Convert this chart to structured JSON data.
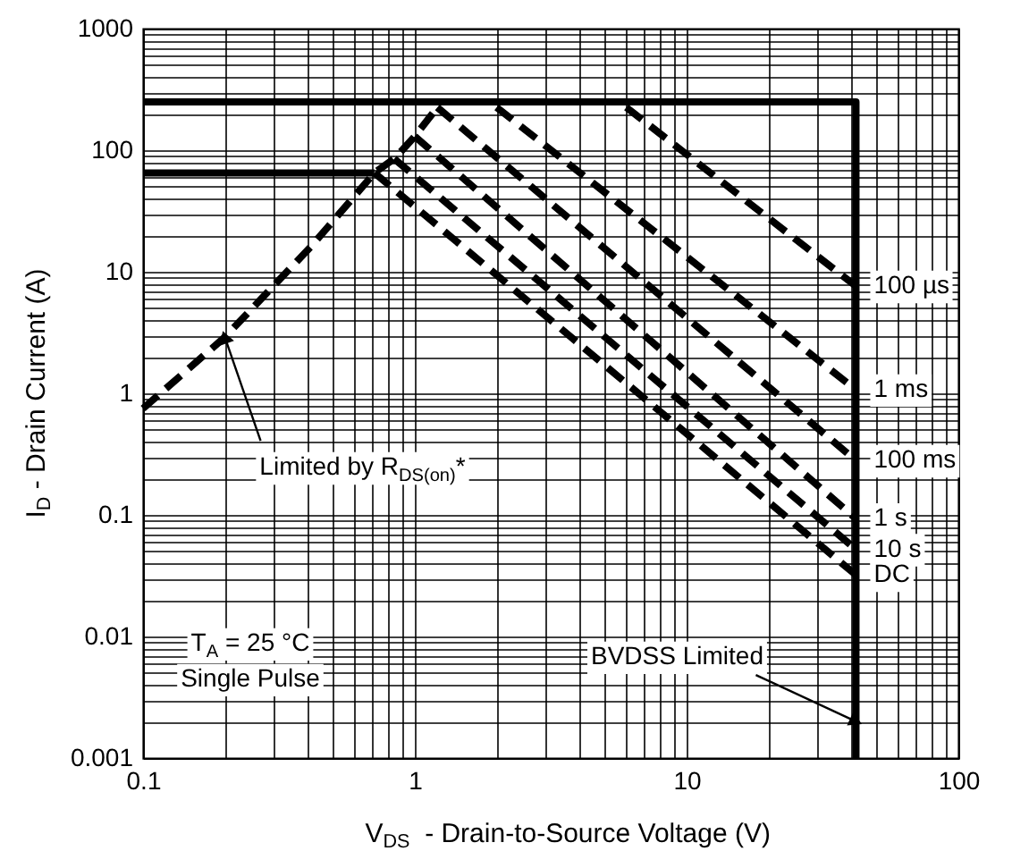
{
  "chart_data": {
    "type": "line",
    "xlabel": "V$_{DS}$  - Drain-to-Source Voltage (V)",
    "ylabel": "I$_{D}$ - Drain Current (A)",
    "xlim": [
      0.1,
      100
    ],
    "ylim": [
      0.001,
      1000
    ],
    "log": "xy",
    "grid": true,
    "xticks": [
      0.1,
      {
        "value": 0.2,
        "label": null
      },
      {
        "value": 0.3,
        "label": null
      },
      {
        "value": 0.4,
        "label": null
      },
      {
        "value": 0.5,
        "label": null
      },
      {
        "value": 0.6,
        "label": null
      },
      {
        "value": 0.7,
        "label": null
      },
      {
        "value": 0.8,
        "label": null
      },
      {
        "value": 0.9,
        "label": null
      },
      1,
      {
        "value": 2,
        "label": null
      },
      {
        "value": 3,
        "label": null
      },
      {
        "value": 4,
        "label": null
      },
      {
        "value": 5,
        "label": null
      },
      {
        "value": 6,
        "label": null
      },
      {
        "value": 7,
        "label": null
      },
      {
        "value": 8,
        "label": null
      },
      {
        "value": 9,
        "label": null
      },
      10,
      {
        "value": 20,
        "label": null
      },
      {
        "value": 30,
        "label": null
      },
      {
        "value": 40,
        "label": null
      },
      {
        "value": 50,
        "label": null
      },
      {
        "value": 60,
        "label": null
      },
      {
        "value": 70,
        "label": null
      },
      {
        "value": 80,
        "label": null
      },
      {
        "value": 90,
        "label": null
      },
      100
    ],
    "yticks": [
      0.001,
      {
        "value": 0.002,
        "label": null
      },
      {
        "value": 0.003,
        "label": null
      },
      {
        "value": 0.004,
        "label": null
      },
      {
        "value": 0.005,
        "label": null
      },
      {
        "value": 0.006,
        "label": null
      },
      {
        "value": 0.007,
        "label": null
      },
      {
        "value": 0.008,
        "label": null
      },
      {
        "value": 0.009,
        "label": null
      },
      0.01,
      {
        "value": 0.02,
        "label": null
      },
      {
        "value": 0.03,
        "label": null
      },
      {
        "value": 0.04,
        "label": null
      },
      {
        "value": 0.05,
        "label": null
      },
      {
        "value": 0.06,
        "label": null
      },
      {
        "value": 0.07,
        "label": null
      },
      {
        "value": 0.08,
        "label": null
      },
      {
        "value": 0.09,
        "label": null
      },
      0.1,
      {
        "value": 0.2,
        "label": null
      },
      {
        "value": 0.3,
        "label": null
      },
      {
        "value": 0.4,
        "label": null
      },
      {
        "value": 0.5,
        "label": null
      },
      {
        "value": 0.6,
        "label": null
      },
      {
        "value": 0.7,
        "label": null
      },
      {
        "value": 0.8,
        "label": null
      },
      {
        "value": 0.9,
        "label": null
      },
      1,
      {
        "value": 2,
        "label": null
      },
      {
        "value": 3,
        "label": null
      },
      {
        "value": 4,
        "label": null
      },
      {
        "value": 5,
        "label": null
      },
      {
        "value": 6,
        "label": null
      },
      {
        "value": 7,
        "label": null
      },
      {
        "value": 8,
        "label": null
      },
      {
        "value": 9,
        "label": null
      },
      10,
      {
        "value": 20,
        "label": null
      },
      {
        "value": 30,
        "label": null
      },
      {
        "value": 40,
        "label": null
      },
      {
        "value": 50,
        "label": null
      },
      {
        "value": 60,
        "label": null
      },
      {
        "value": 70,
        "label": null
      },
      {
        "value": 80,
        "label": null
      },
      {
        "value": 90,
        "label": null
      },
      100,
      {
        "value": 200,
        "label": null
      },
      {
        "value": 300,
        "label": null
      },
      {
        "value": 400,
        "label": null
      },
      {
        "value": 500,
        "label": null
      },
      {
        "value": 600,
        "label": null
      },
      {
        "value": 700,
        "label": null
      },
      {
        "value": 800,
        "label": null
      },
      {
        "value": 900,
        "label": null
      },
      1000
    ],
    "series": [
      {
        "color": "#000000",
        "line_style": "solid",
        "x": [
          0.1,
          42,
          42
        ],
        "values": [
          250,
          250,
          0.001
        ]
      },
      {
        "color": "#000000",
        "line_style": "solid",
        "x": [
          0.1,
          0.71
        ],
        "values": [
          65,
          65
        ]
      },
      {
        "color": "#000000",
        "line_style": "dashed",
        "x": [
          0.1,
          0.2,
          0.42,
          0.71,
          0.84,
          1.0,
          1.21
        ],
        "values": [
          0.75,
          2.9,
          16.6,
          65,
          85,
          130,
          225
        ]
      },
      {
        "name": "100 µs",
        "color": "#000000",
        "line_style": "dashed",
        "x": [
          6,
          42
        ],
        "values": [
          225,
          7.6
        ]
      },
      {
        "name": "1 ms",
        "color": "#000000",
        "line_style": "dashed",
        "x": [
          2,
          42
        ],
        "values": [
          225,
          1.07
        ]
      },
      {
        "name": "100 ms",
        "color": "#000000",
        "line_style": "dashed",
        "x": [
          1.21,
          42
        ],
        "values": [
          225,
          0.28
        ]
      },
      {
        "name": "1 s",
        "color": "#000000",
        "line_style": "dashed",
        "x": [
          1.0,
          42
        ],
        "values": [
          130,
          0.093
        ]
      },
      {
        "name": "10 s",
        "color": "#000000",
        "line_style": "dashed",
        "x": [
          0.84,
          42
        ],
        "values": [
          85,
          0.052
        ]
      },
      {
        "name": "DC",
        "color": "#000000",
        "line_style": "dashed",
        "x": [
          0.71,
          42
        ],
        "values": [
          65,
          0.032
        ]
      }
    ],
    "annotations": [
      {
        "text": "Limited by R$_{DS(on)}$*",
        "x": 0.2,
        "y": 2.9
      },
      {
        "text": "BVDSS Limited",
        "x": 42,
        "y": 0.002
      },
      "T$_{A}$ = 25 °C",
      "Single Pulse"
    ]
  }
}
